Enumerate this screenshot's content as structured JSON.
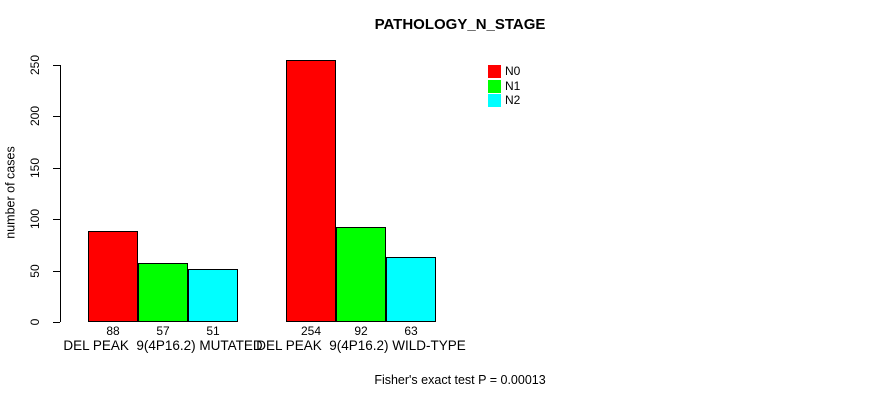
{
  "chart_data": {
    "type": "bar",
    "title": "PATHOLOGY_N_STAGE",
    "ylabel": "number of cases",
    "xlabel": "",
    "ylim": [
      0,
      250
    ],
    "yticks": [
      0,
      50,
      100,
      150,
      200,
      250
    ],
    "grid": false,
    "legend_position": "top-right",
    "categories": [
      "DEL PEAK  9(4P16.2) MUTATED",
      "DEL PEAK  9(4P16.2) WILD-TYPE"
    ],
    "series": [
      {
        "name": "N0",
        "color": "#ff0000",
        "values": [
          88,
          254
        ]
      },
      {
        "name": "N1",
        "color": "#00ff00",
        "values": [
          57,
          92
        ]
      },
      {
        "name": "N2",
        "color": "#00ffff",
        "values": [
          51,
          63
        ]
      }
    ],
    "bar_value_labels": [
      [
        "88",
        "57",
        "51"
      ],
      [
        "254",
        "92",
        "63"
      ]
    ],
    "footnote": "Fisher's exact test P = 0.00013",
    "colors": {
      "axis": "#000000",
      "text": "#000000",
      "background": "#ffffff"
    }
  }
}
